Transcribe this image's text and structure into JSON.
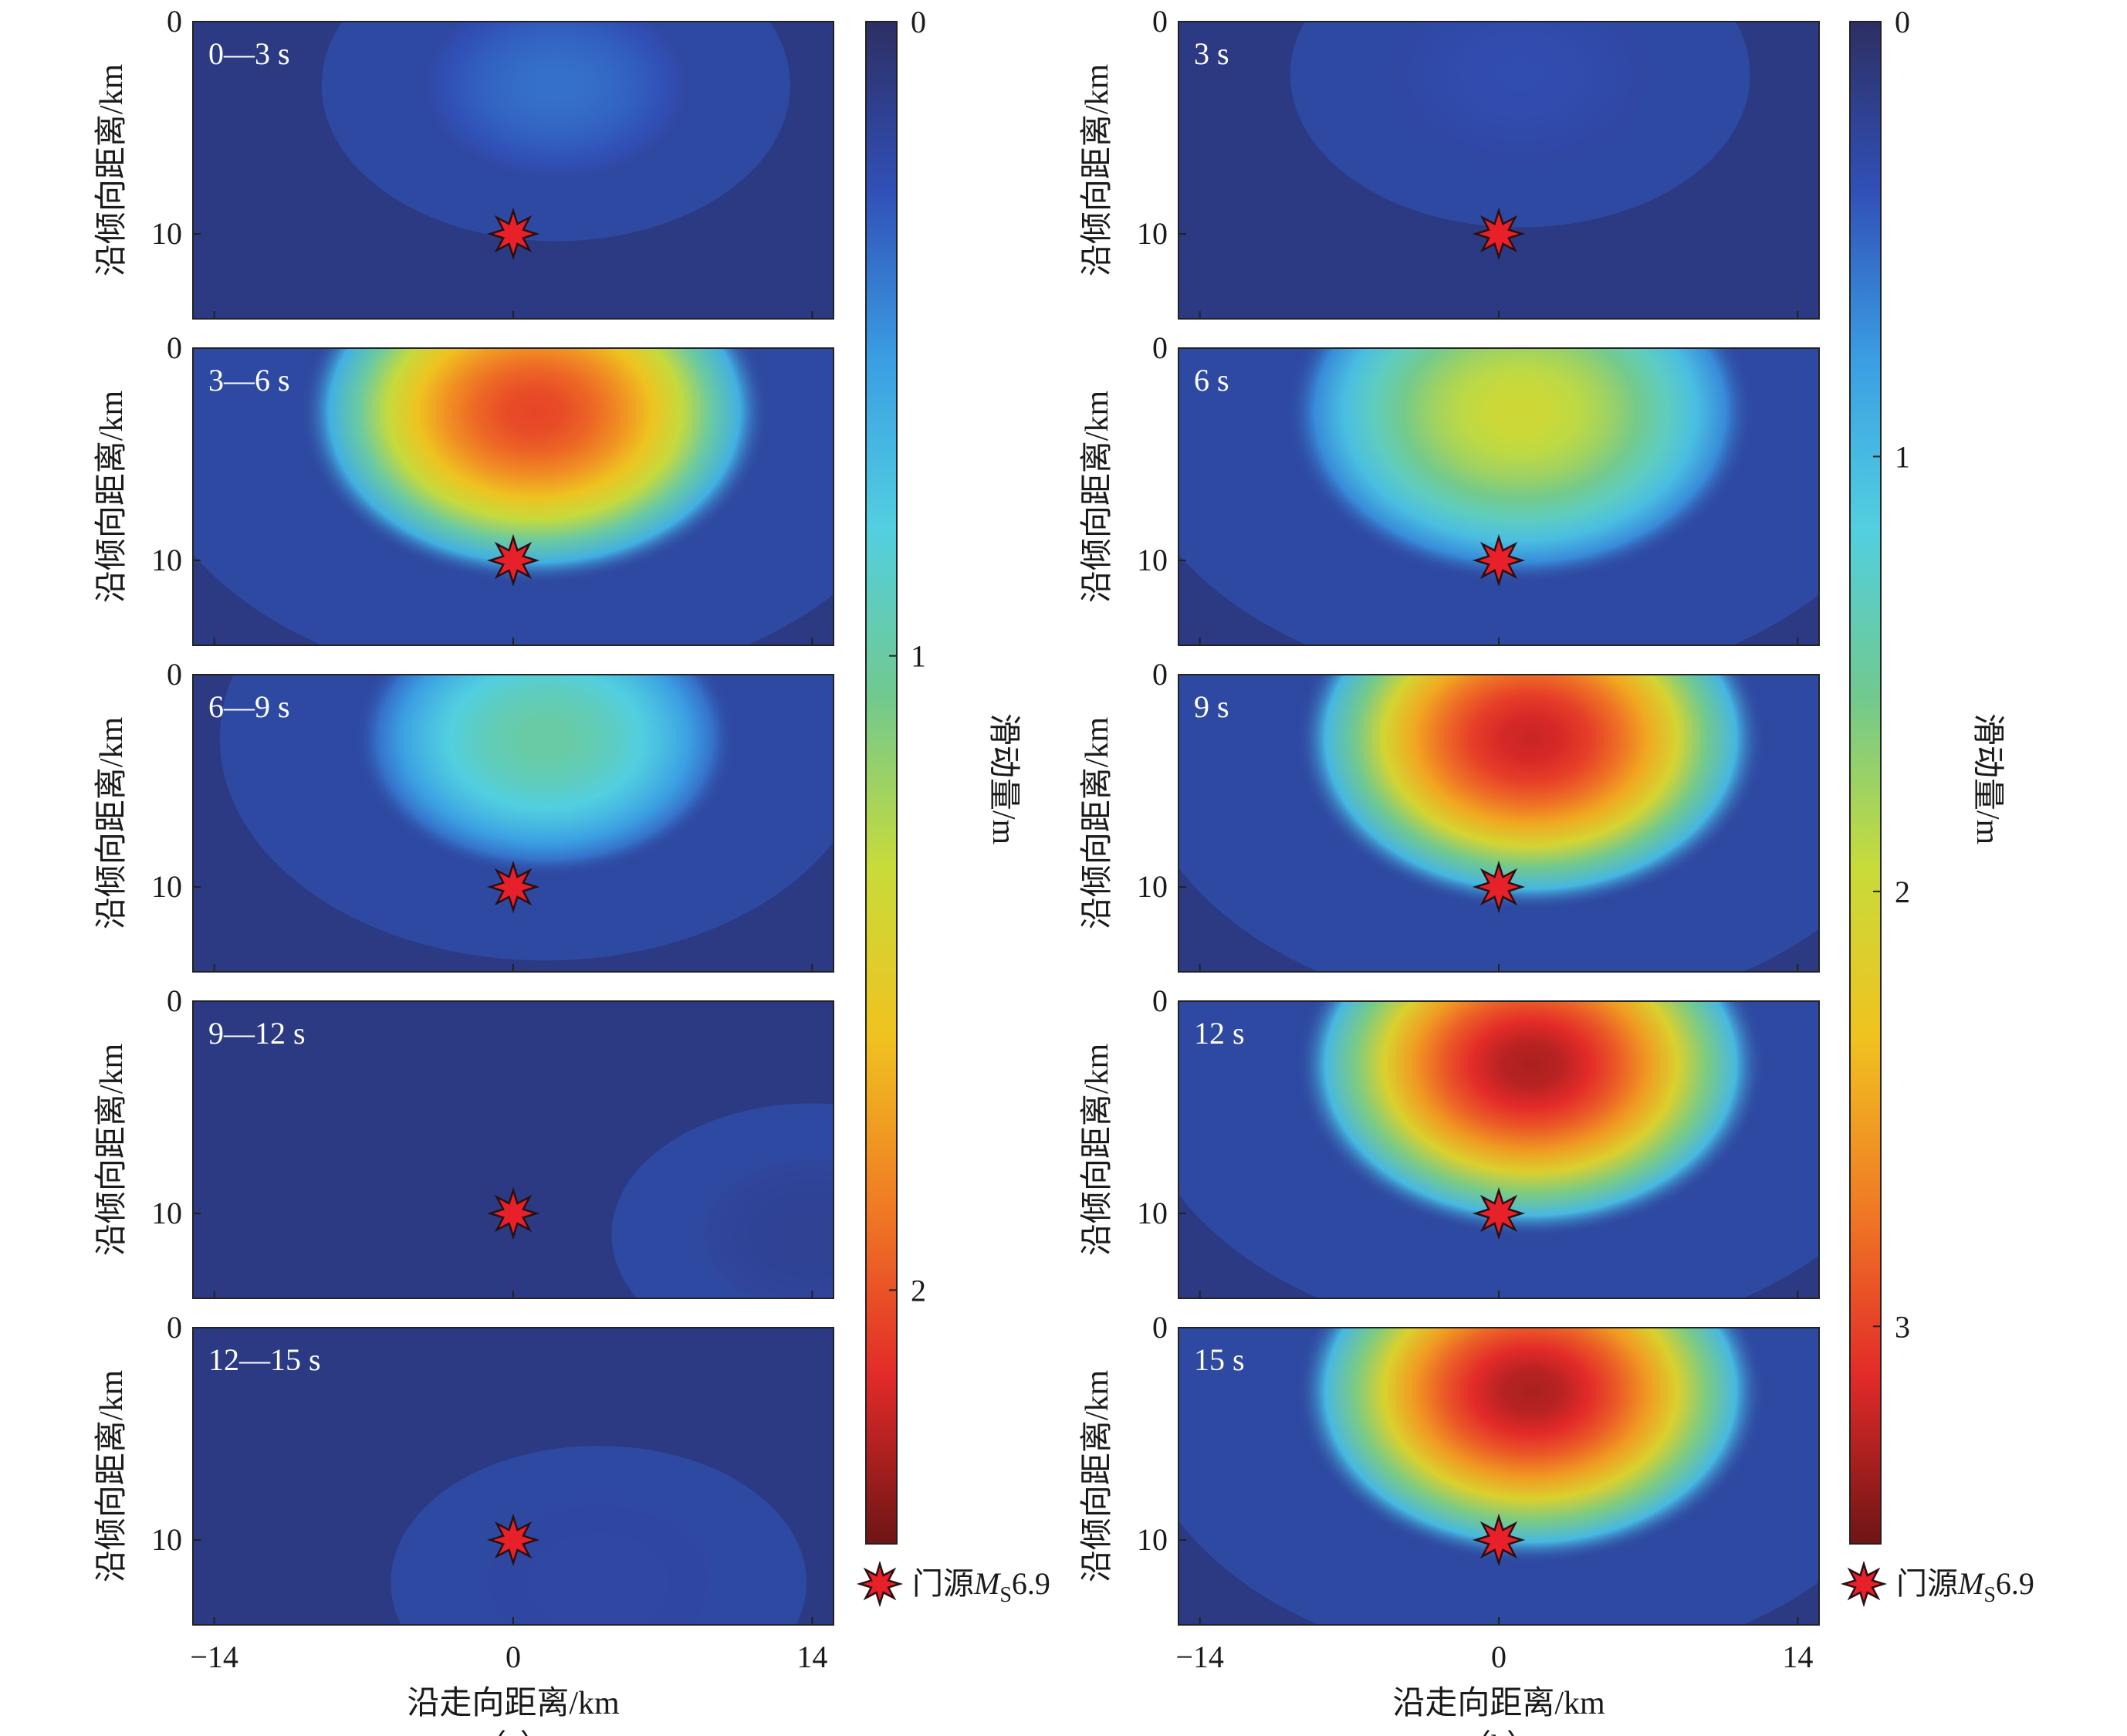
{
  "figure": {
    "captions": [
      "（a）",
      "（b）"
    ],
    "legend_label": "门源",
    "legend_M": "M",
    "legend_sub": "S",
    "legend_mag": "6.9",
    "ylabel": "沿倾向距离/km",
    "xlabel": "沿走向距离/km",
    "colorbar_label": "滑动量/m",
    "colors": {
      "star_fill": "#e8202a",
      "star_stroke": "#2a0f0f",
      "panel_base": "#2b3a82",
      "colormap": [
        "#2d2f63",
        "#3150b8",
        "#3a9ee3",
        "#52cfe0",
        "#71c98e",
        "#c8db3a",
        "#f0c21f",
        "#f07b24",
        "#e32b29",
        "#6e1515"
      ]
    }
  },
  "chart_data": [
    {
      "type": "heatmap",
      "group": "a",
      "xlabel": "沿走向距离/km",
      "ylabel": "沿倾向距离/km",
      "xlim": [
        -15,
        15
      ],
      "ylim": [
        0,
        14
      ],
      "xticks": [
        -14,
        0,
        14
      ],
      "xtick_labels": [
        "−14",
        "0",
        "14"
      ],
      "yticks": [
        0,
        10
      ],
      "ytick_labels": [
        "0",
        "10"
      ],
      "hypocenter": {
        "x": 0,
        "y": 10,
        "label": "门源Ms6.9"
      },
      "colorbar": {
        "label": "滑动量/m",
        "range": [
          0,
          2.4
        ],
        "ticks": [
          0,
          1,
          2
        ],
        "tick_labels": [
          "0",
          "1",
          "2"
        ]
      },
      "panels": [
        {
          "label": "0—3 s",
          "peak": {
            "x": 2,
            "y": 3,
            "value": 0.38
          }
        },
        {
          "label": "3—6 s",
          "peak": {
            "x": 1,
            "y": 3,
            "value": 2.05
          }
        },
        {
          "label": "6—9 s",
          "peak": {
            "x": 1.5,
            "y": 3,
            "value": 1.0
          }
        },
        {
          "label": "9—12 s",
          "peak": {
            "x": 14,
            "y": 11,
            "value": 0.15
          }
        },
        {
          "label": "12—15 s",
          "peak": {
            "x": 4,
            "y": 12,
            "value": 0.2
          }
        }
      ]
    },
    {
      "type": "heatmap",
      "group": "b",
      "xlabel": "沿走向距离/km",
      "ylabel": "沿倾向距离/km",
      "xlim": [
        -15,
        15
      ],
      "ylim": [
        0,
        14
      ],
      "xticks": [
        -14,
        0,
        14
      ],
      "xtick_labels": [
        "−14",
        "0",
        "14"
      ],
      "yticks": [
        0,
        10
      ],
      "ytick_labels": [
        "0",
        "10"
      ],
      "hypocenter": {
        "x": 0,
        "y": 10,
        "label": "门源Ms6.9"
      },
      "colorbar": {
        "label": "滑动量/m",
        "range": [
          0,
          3.5
        ],
        "ticks": [
          0,
          1,
          2,
          3
        ],
        "tick_labels": [
          "0",
          "1",
          "2",
          "3"
        ]
      },
      "panels": [
        {
          "label": "3 s",
          "peak": {
            "x": 1,
            "y": 2.5,
            "value": 0.35
          }
        },
        {
          "label": "6 s",
          "peak": {
            "x": 1,
            "y": 3,
            "value": 2.0
          }
        },
        {
          "label": "9 s",
          "peak": {
            "x": 1.5,
            "y": 3,
            "value": 3.2
          }
        },
        {
          "label": "12 s",
          "peak": {
            "x": 1.5,
            "y": 3,
            "value": 3.3
          }
        },
        {
          "label": "15 s",
          "peak": {
            "x": 1.5,
            "y": 3,
            "value": 3.3
          }
        }
      ]
    }
  ]
}
